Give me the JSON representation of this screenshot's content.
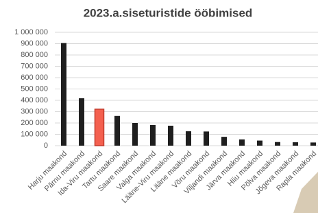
{
  "chart_data": {
    "type": "bar",
    "title": "2023.a.siseturistide ööbimised",
    "categories": [
      "Harju maakond",
      "Pärnu maakond",
      "Ida-Viru maakond",
      "Tartu maakond",
      "Saare maakond",
      "Valga maakond",
      "Lääne-Viru maakond",
      "Lääne maakond",
      "Võru maakond",
      "Viljandi maakond",
      "Järva maakond",
      "Hiiu maakond",
      "Põlva maakond",
      "Jõgeva maakond",
      "Rapla maakond"
    ],
    "values": [
      905000,
      418000,
      322000,
      262000,
      200000,
      182000,
      176000,
      127000,
      125000,
      78000,
      55000,
      45000,
      32000,
      30000,
      28000
    ],
    "colors": [
      "#1f1f1f",
      "#1f1f1f",
      "#f4604f",
      "#1f1f1f",
      "#1f1f1f",
      "#1f1f1f",
      "#1f1f1f",
      "#1f1f1f",
      "#1f1f1f",
      "#1f1f1f",
      "#1f1f1f",
      "#1f1f1f",
      "#1f1f1f",
      "#1f1f1f",
      "#1f1f1f"
    ],
    "edgecolors": [
      "#1f1f1f",
      "#1f1f1f",
      "#c0392b",
      "#1f1f1f",
      "#1f1f1f",
      "#1f1f1f",
      "#1f1f1f",
      "#1f1f1f",
      "#1f1f1f",
      "#1f1f1f",
      "#1f1f1f",
      "#1f1f1f",
      "#1f1f1f",
      "#1f1f1f",
      "#1f1f1f"
    ],
    "ylim": [
      0,
      1000000
    ],
    "yticks": [
      0,
      {
        "value": 100000,
        "label": "100 000"
      },
      {
        "value": 200000,
        "label": "200 000"
      },
      {
        "value": 300000,
        "label": "300 000"
      },
      {
        "value": 400000,
        "label": "400 000"
      },
      {
        "value": 500000,
        "label": "500 000"
      },
      {
        "value": 600000,
        "label": "600 000"
      },
      {
        "value": 700000,
        "label": "700 000"
      },
      {
        "value": 800000,
        "label": "800 000"
      },
      {
        "value": 900000,
        "label": "900 000"
      },
      {
        "value": 1000000,
        "label": "1 000 000"
      }
    ],
    "grid": true
  }
}
